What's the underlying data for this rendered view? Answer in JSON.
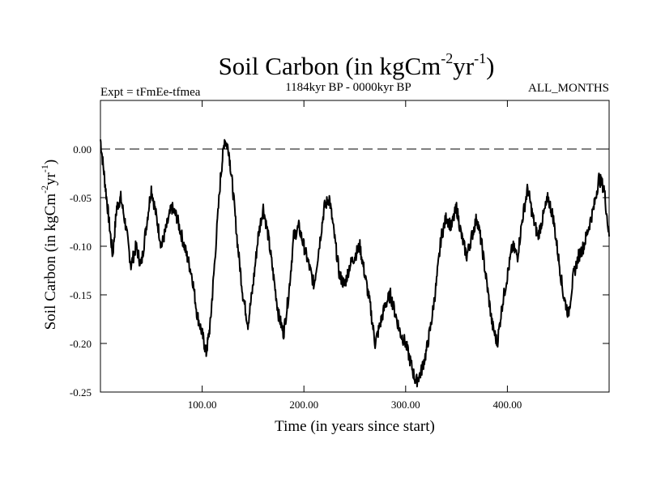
{
  "chart_data": {
    "type": "line",
    "title_main": "Soil Carbon (in kgCm",
    "title_sup1": "-2",
    "title_mid": "yr",
    "title_sup2": "-1",
    "title_end": ")",
    "subtitle_left": "Expt = tFmEe-tfmea",
    "subtitle_center": "1184kyr BP - 0000kyr BP",
    "subtitle_right": "ALL_MONTHS",
    "xlabel": "Time (in years since start)",
    "ylabel_main": "Soil Carbon (in kgCm",
    "ylabel_sup1": "-2",
    "ylabel_mid": "yr",
    "ylabel_sup2": "-1",
    "ylabel_end": ")",
    "xlim": [
      0,
      500
    ],
    "ylim": [
      -0.25,
      0.05
    ],
    "x_ticks": [
      100,
      200,
      300,
      400
    ],
    "x_tick_labels": [
      "100.00",
      "200.00",
      "300.00",
      "400.00"
    ],
    "y_ticks": [
      0.0,
      -0.05,
      -0.1,
      -0.15,
      -0.2,
      -0.25
    ],
    "y_tick_labels": [
      "0.00",
      "-0.05",
      "-0.10",
      "-0.15",
      "-0.20",
      "-0.25"
    ],
    "reference_line": 0.0,
    "grid": false,
    "color": "#000000",
    "series": [
      {
        "name": "Soil Carbon",
        "x": [
          0,
          4,
          8,
          12,
          16,
          20,
          25,
          30,
          35,
          40,
          45,
          50,
          55,
          60,
          65,
          70,
          75,
          80,
          85,
          90,
          95,
          100,
          104,
          108,
          112,
          118,
          122,
          126,
          130,
          135,
          140,
          145,
          150,
          155,
          160,
          165,
          170,
          175,
          180,
          185,
          190,
          195,
          200,
          205,
          210,
          215,
          220,
          225,
          230,
          235,
          240,
          245,
          250,
          255,
          260,
          265,
          270,
          275,
          280,
          285,
          290,
          295,
          300,
          305,
          310,
          315,
          320,
          325,
          330,
          335,
          340,
          345,
          350,
          355,
          360,
          365,
          370,
          375,
          380,
          385,
          390,
          395,
          400,
          405,
          410,
          415,
          420,
          425,
          430,
          435,
          440,
          445,
          450,
          455,
          460,
          465,
          470,
          475,
          480,
          485,
          490,
          495,
          500
        ],
        "y": [
          0.01,
          -0.03,
          -0.07,
          -0.11,
          -0.06,
          -0.05,
          -0.08,
          -0.12,
          -0.1,
          -0.12,
          -0.08,
          -0.04,
          -0.07,
          -0.1,
          -0.08,
          -0.06,
          -0.07,
          -0.09,
          -0.11,
          -0.13,
          -0.17,
          -0.19,
          -0.21,
          -0.18,
          -0.12,
          -0.03,
          0.01,
          0.0,
          -0.04,
          -0.1,
          -0.15,
          -0.18,
          -0.14,
          -0.09,
          -0.06,
          -0.09,
          -0.13,
          -0.17,
          -0.19,
          -0.15,
          -0.09,
          -0.08,
          -0.1,
          -0.12,
          -0.14,
          -0.1,
          -0.06,
          -0.05,
          -0.09,
          -0.13,
          -0.14,
          -0.12,
          -0.11,
          -0.1,
          -0.13,
          -0.16,
          -0.2,
          -0.18,
          -0.16,
          -0.15,
          -0.17,
          -0.19,
          -0.2,
          -0.22,
          -0.24,
          -0.23,
          -0.21,
          -0.18,
          -0.14,
          -0.09,
          -0.07,
          -0.08,
          -0.06,
          -0.09,
          -0.11,
          -0.09,
          -0.07,
          -0.1,
          -0.14,
          -0.18,
          -0.2,
          -0.16,
          -0.13,
          -0.1,
          -0.11,
          -0.07,
          -0.04,
          -0.07,
          -0.09,
          -0.07,
          -0.05,
          -0.07,
          -0.11,
          -0.15,
          -0.17,
          -0.13,
          -0.11,
          -0.1,
          -0.08,
          -0.06,
          -0.03,
          -0.04,
          -0.09
        ]
      }
    ]
  }
}
